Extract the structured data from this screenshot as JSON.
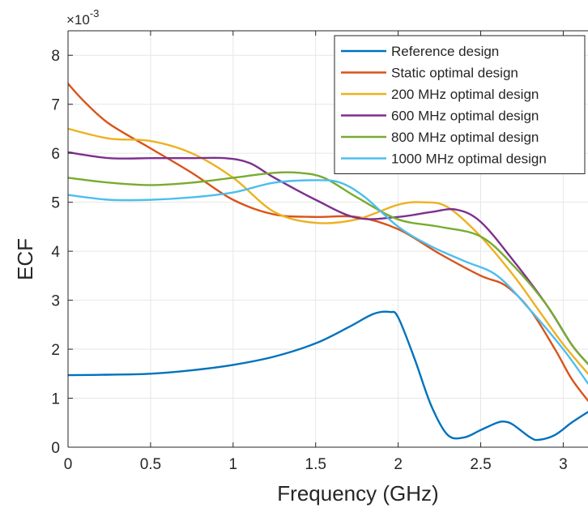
{
  "chart_data": {
    "type": "line",
    "title": "",
    "xlabel": "Frequency (GHz)",
    "ylabel": "ECF",
    "xlim": [
      0,
      3.15
    ],
    "ylim": [
      0,
      0.0085
    ],
    "grid": true,
    "legend_position": "top-right",
    "x_ticks": [
      0,
      0.5,
      1,
      1.5,
      2,
      2.5,
      3
    ],
    "x_tick_labels": [
      "0",
      "0.5",
      "1",
      "1.5",
      "2",
      "2.5",
      "3"
    ],
    "y_ticks": [
      0,
      0.001,
      0.002,
      0.003,
      0.004,
      0.005,
      0.006,
      0.007,
      0.008
    ],
    "y_tick_labels": [
      "0",
      "1",
      "2",
      "3",
      "4",
      "5",
      "6",
      "7",
      "8"
    ],
    "y_exponent_label": "×10",
    "y_exponent_power": "-3",
    "series": [
      {
        "name": "Reference design",
        "color": "#0072BD",
        "x": [
          0,
          0.25,
          0.5,
          0.75,
          1.0,
          1.25,
          1.5,
          1.7,
          1.85,
          1.95,
          2.0,
          2.1,
          2.2,
          2.3,
          2.4,
          2.5,
          2.6,
          2.65,
          2.7,
          2.8,
          2.85,
          2.95,
          3.05,
          3.15
        ],
        "y": [
          0.00147,
          0.00148,
          0.0015,
          0.00157,
          0.00168,
          0.00185,
          0.00212,
          0.00245,
          0.00272,
          0.00276,
          0.00265,
          0.0018,
          0.00085,
          0.00025,
          0.0002,
          0.00035,
          0.0005,
          0.00052,
          0.00045,
          0.0002,
          0.00015,
          0.00025,
          0.0005,
          0.00072
        ]
      },
      {
        "name": "Static optimal design",
        "color": "#D95319",
        "x": [
          0,
          0.1,
          0.25,
          0.5,
          0.75,
          1.0,
          1.25,
          1.5,
          1.75,
          2.0,
          2.25,
          2.5,
          2.65,
          2.8,
          2.95,
          3.05,
          3.15
        ],
        "y": [
          0.00742,
          0.00705,
          0.0066,
          0.0061,
          0.0056,
          0.00505,
          0.00475,
          0.0047,
          0.0047,
          0.00445,
          0.00395,
          0.0035,
          0.0033,
          0.0028,
          0.002,
          0.0014,
          0.00095
        ]
      },
      {
        "name": "200 MHz optimal design",
        "color": "#EDB120",
        "x": [
          0,
          0.25,
          0.5,
          0.75,
          1.0,
          1.25,
          1.5,
          1.75,
          2.0,
          2.15,
          2.3,
          2.5,
          2.7,
          2.85,
          3.0,
          3.15
        ],
        "y": [
          0.0065,
          0.0063,
          0.00625,
          0.006,
          0.0055,
          0.0048,
          0.00458,
          0.00465,
          0.00495,
          0.005,
          0.0049,
          0.0043,
          0.0035,
          0.0028,
          0.0021,
          0.0015
        ]
      },
      {
        "name": "600 MHz optimal design",
        "color": "#7E2F8E",
        "x": [
          0,
          0.25,
          0.5,
          0.75,
          0.95,
          1.1,
          1.25,
          1.5,
          1.75,
          2.0,
          2.2,
          2.35,
          2.5,
          2.7,
          2.9,
          3.05,
          3.15
        ],
        "y": [
          0.00602,
          0.0059,
          0.0059,
          0.0059,
          0.0059,
          0.0058,
          0.0055,
          0.00505,
          0.00468,
          0.0047,
          0.0048,
          0.00485,
          0.0046,
          0.0038,
          0.0029,
          0.0021,
          0.0017
        ]
      },
      {
        "name": "800 MHz optimal design",
        "color": "#77AC30",
        "x": [
          0,
          0.25,
          0.5,
          0.75,
          1.0,
          1.25,
          1.4,
          1.55,
          1.75,
          2.0,
          2.25,
          2.5,
          2.7,
          2.9,
          3.05,
          3.15
        ],
        "y": [
          0.0055,
          0.0054,
          0.00535,
          0.0054,
          0.0055,
          0.0056,
          0.0056,
          0.0055,
          0.0051,
          0.00465,
          0.0045,
          0.0043,
          0.0037,
          0.0029,
          0.0021,
          0.0017
        ]
      },
      {
        "name": "1000 MHz optimal design",
        "color": "#4DBEEE",
        "x": [
          0,
          0.25,
          0.5,
          0.75,
          1.0,
          1.25,
          1.5,
          1.65,
          1.8,
          2.0,
          2.2,
          2.4,
          2.6,
          2.8,
          3.0,
          3.15
        ],
        "y": [
          0.00515,
          0.00505,
          0.00505,
          0.0051,
          0.0052,
          0.0054,
          0.00545,
          0.0054,
          0.0051,
          0.0045,
          0.0041,
          0.0038,
          0.0035,
          0.0028,
          0.002,
          0.0013
        ]
      }
    ]
  }
}
